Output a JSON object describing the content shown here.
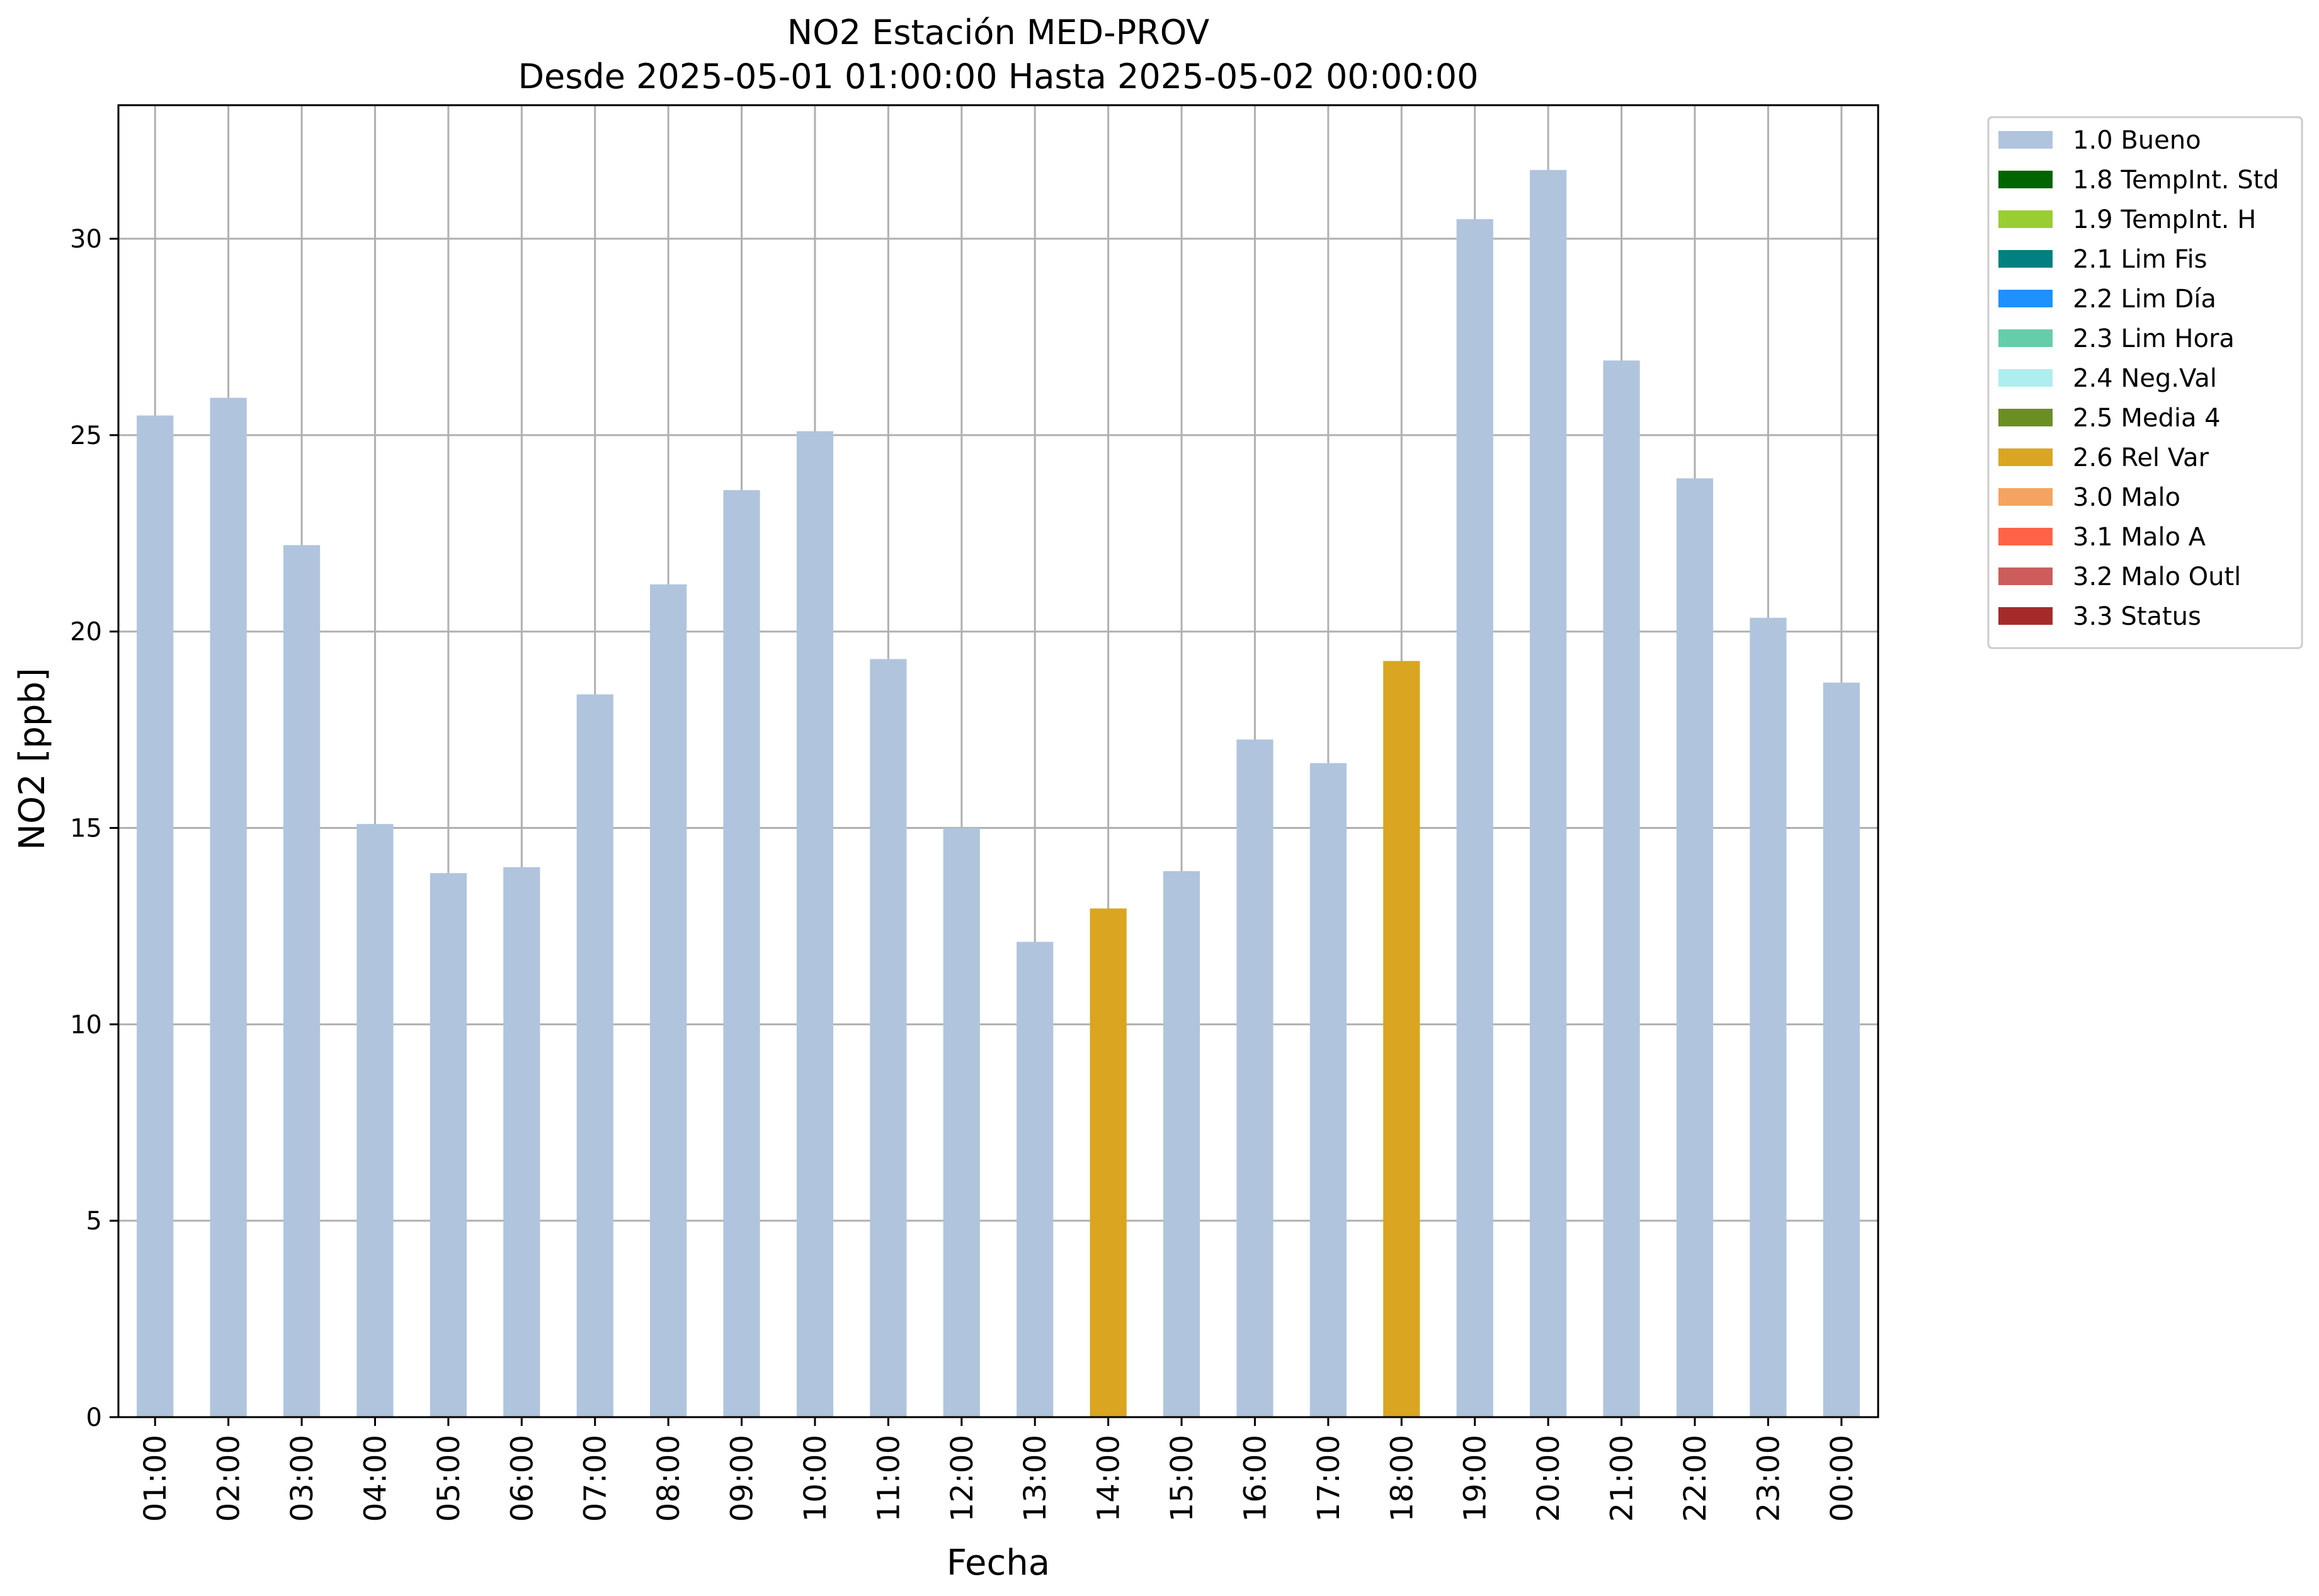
{
  "chart_data": {
    "type": "bar",
    "title_line1": "NO2 Estación MED-PROV",
    "title_line2": "Desde 2025-05-01 01:00:00 Hasta 2025-05-02 00:00:00",
    "xlabel": "Fecha",
    "ylabel": "NO2 [ppb]",
    "ylim": [
      0,
      33.4
    ],
    "yticks": [
      "0",
      "5",
      "10",
      "15",
      "20",
      "25",
      "30"
    ],
    "grid": true,
    "legend_position": "outside-top-right",
    "categories": [
      "01:00",
      "02:00",
      "03:00",
      "04:00",
      "05:00",
      "06:00",
      "07:00",
      "08:00",
      "09:00",
      "10:00",
      "11:00",
      "12:00",
      "13:00",
      "14:00",
      "15:00",
      "16:00",
      "17:00",
      "18:00",
      "19:00",
      "20:00",
      "21:00",
      "22:00",
      "23:00",
      "00:00"
    ],
    "values": [
      25.5,
      25.95,
      22.2,
      15.1,
      13.85,
      14.0,
      18.4,
      21.2,
      23.6,
      25.1,
      19.3,
      15.0,
      12.1,
      12.95,
      13.9,
      17.25,
      16.65,
      19.25,
      30.5,
      31.75,
      26.9,
      23.9,
      20.35,
      18.7
    ],
    "flags": [
      "1.0 Bueno",
      "1.0 Bueno",
      "1.0 Bueno",
      "1.0 Bueno",
      "1.0 Bueno",
      "1.0 Bueno",
      "1.0 Bueno",
      "1.0 Bueno",
      "1.0 Bueno",
      "1.0 Bueno",
      "1.0 Bueno",
      "1.0 Bueno",
      "1.0 Bueno",
      "2.6 Rel Var",
      "1.0 Bueno",
      "1.0 Bueno",
      "1.0 Bueno",
      "2.6 Rel Var",
      "1.0 Bueno",
      "1.0 Bueno",
      "1.0 Bueno",
      "1.0 Bueno",
      "1.0 Bueno",
      "1.0 Bueno"
    ],
    "legend": [
      {
        "name": "1.0 Bueno",
        "color": "#b0c4de"
      },
      {
        "name": "1.8 TempInt. Std",
        "color": "#006400"
      },
      {
        "name": "1.9 TempInt. H",
        "color": "#9acd32"
      },
      {
        "name": "2.1 Lim Fis",
        "color": "#008080"
      },
      {
        "name": "2.2 Lim Día",
        "color": "#1e90ff"
      },
      {
        "name": "2.3 Lim Hora",
        "color": "#66cdaa"
      },
      {
        "name": "2.4 Neg.Val",
        "color": "#afeeee"
      },
      {
        "name": "2.5 Media 4",
        "color": "#6b8e23"
      },
      {
        "name": "2.6 Rel Var",
        "color": "#daa520"
      },
      {
        "name": "3.0 Malo",
        "color": "#f4a460"
      },
      {
        "name": "3.1 Malo A",
        "color": "#ff6347"
      },
      {
        "name": "3.2 Malo Outl",
        "color": "#cd5c5c"
      },
      {
        "name": "3.3 Status",
        "color": "#a52a2a"
      }
    ]
  }
}
